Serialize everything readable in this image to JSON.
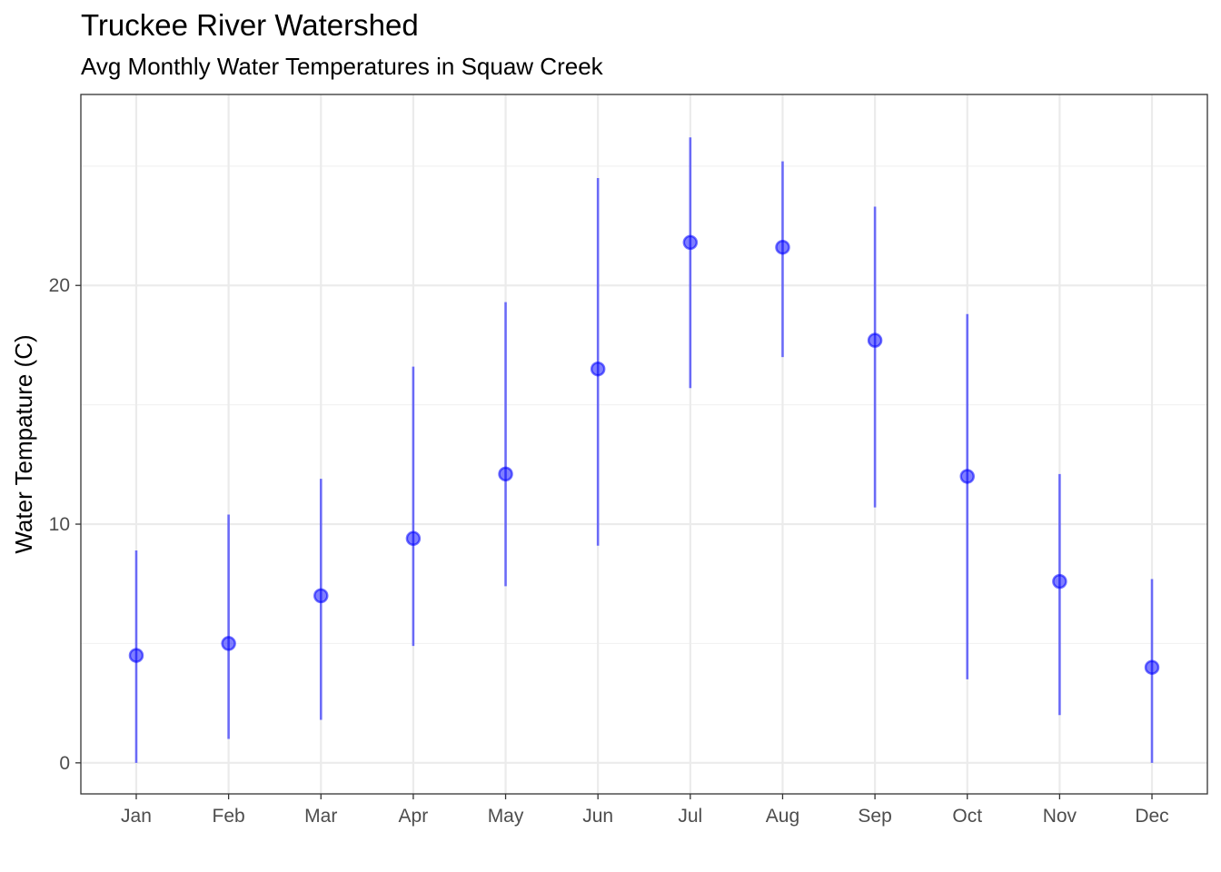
{
  "chart_data": {
    "type": "scatter",
    "title": "Truckee River Watershed",
    "subtitle": "Avg Monthly Water Temperatures in Squaw Creek",
    "xlabel": "",
    "ylabel": "Water Tempature (C)",
    "categories": [
      "Jan",
      "Feb",
      "Mar",
      "Apr",
      "May",
      "Jun",
      "Jul",
      "Aug",
      "Sep",
      "Oct",
      "Nov",
      "Dec"
    ],
    "mean": [
      4.5,
      5.0,
      7.0,
      9.4,
      12.1,
      16.5,
      21.8,
      21.6,
      17.7,
      12.0,
      7.6,
      4.0
    ],
    "min": [
      0.0,
      1.0,
      1.8,
      4.9,
      7.4,
      9.1,
      15.7,
      17.0,
      10.7,
      3.5,
      2.0,
      0.0
    ],
    "max": [
      8.9,
      10.4,
      11.9,
      16.6,
      19.3,
      24.5,
      26.2,
      25.2,
      23.3,
      18.8,
      12.1,
      7.7
    ],
    "ylim": [
      -1.3,
      28.0
    ],
    "yticks": [
      0,
      10,
      20
    ],
    "grid": true,
    "legend": "none",
    "colors": {
      "series": "#0000ff",
      "grid_major": "#ebebeb",
      "grid_minor": "#f2f2f2",
      "panel_border": "#333333"
    }
  }
}
